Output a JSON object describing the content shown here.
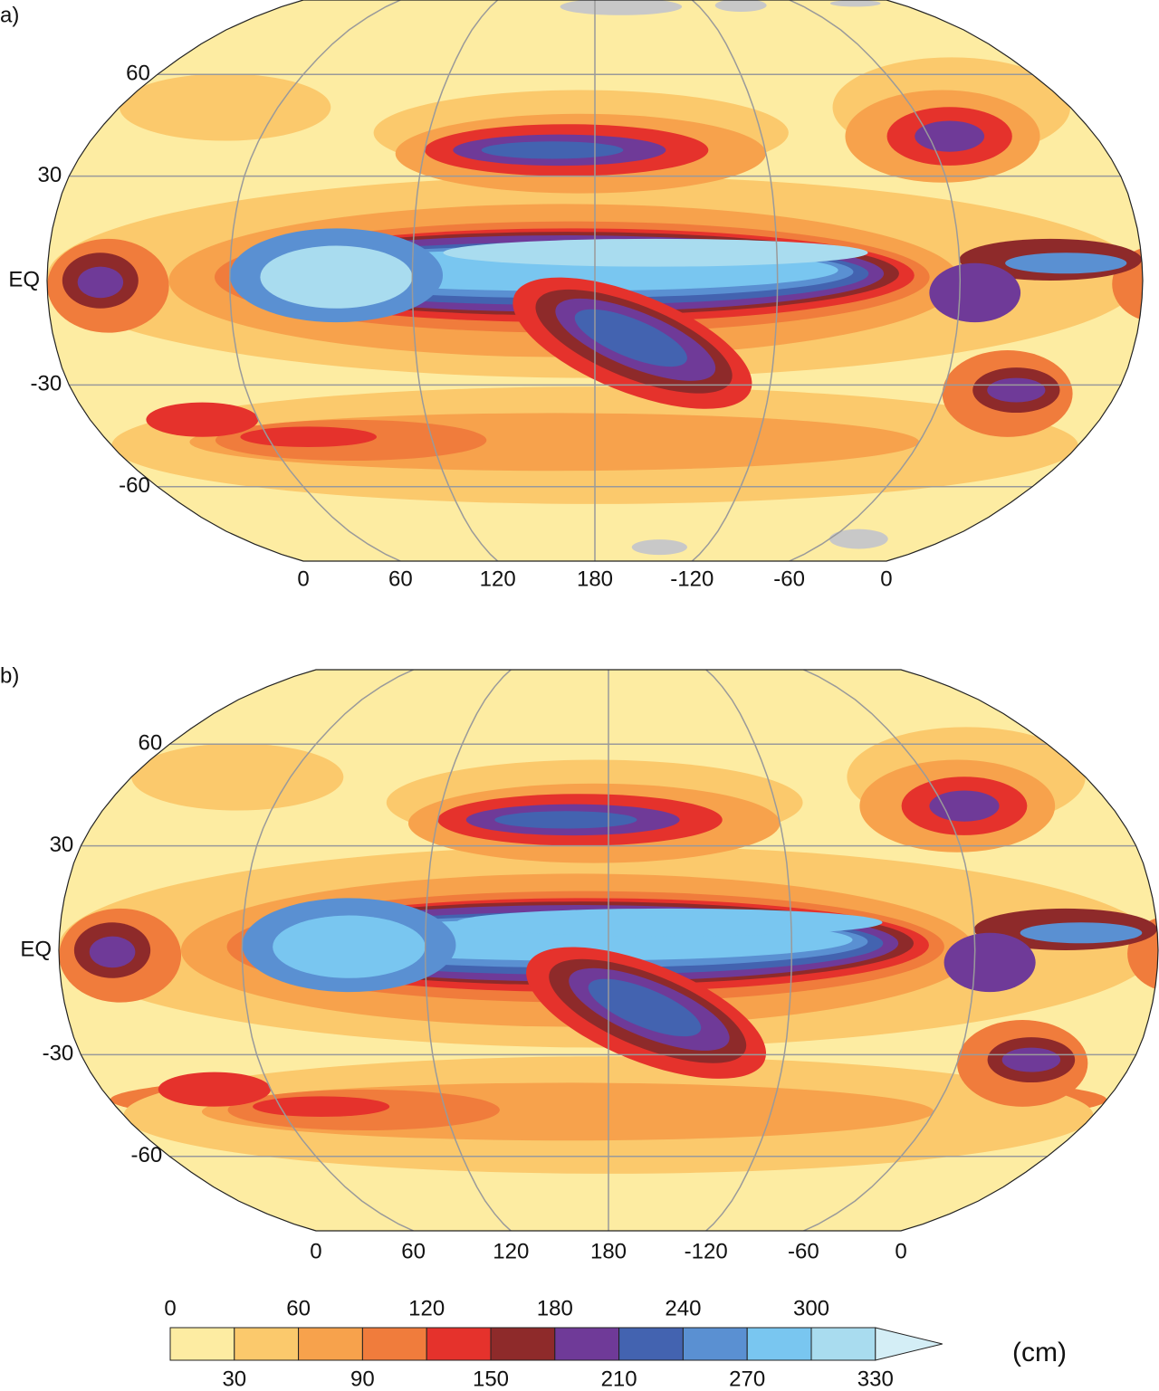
{
  "panels": [
    {
      "label": "a)",
      "lat_labels": [
        60,
        30,
        {
          "value": 0,
          "label": "EQ"
        },
        -30,
        -60
      ],
      "lon_labels": [
        0,
        60,
        120,
        180,
        -120,
        -60,
        0
      ]
    },
    {
      "label": "b)",
      "lat_labels": [
        60,
        30,
        {
          "value": 0,
          "label": "EQ"
        },
        -30,
        -60
      ],
      "lon_labels": [
        0,
        60,
        120,
        180,
        -120,
        -60,
        0
      ]
    }
  ],
  "colorbar": {
    "boundaries": [
      0,
      30,
      60,
      90,
      120,
      150,
      180,
      210,
      240,
      270,
      300,
      330
    ],
    "colors": [
      "#fdeca2",
      "#fbc96c",
      "#f7a24c",
      "#f07c3c",
      "#e5322c",
      "#8e2a2a",
      "#6f3a98",
      "#4363b0",
      "#5a90d2",
      "#79c6f0",
      "#a9dcef",
      "#d4eef6"
    ],
    "unit": "(cm)"
  }
}
